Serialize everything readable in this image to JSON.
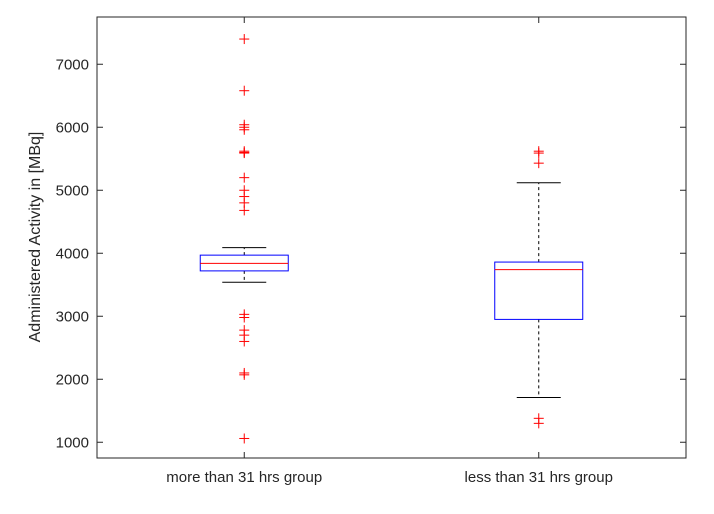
{
  "chart_data": {
    "type": "box",
    "title": "",
    "xlabel": "",
    "ylabel": "Administered Activity in [MBq]",
    "ylim": [
      750,
      7750
    ],
    "yticks": [
      1000,
      2000,
      3000,
      4000,
      5000,
      6000,
      7000
    ],
    "grid": false,
    "categories": [
      "more than 31 hrs group",
      "less than 31 hrs group"
    ],
    "boxes": [
      {
        "category": "more than 31 hrs group",
        "whisker_low": 3540,
        "q1": 3720,
        "median": 3840,
        "q3": 3970,
        "whisker_high": 4090,
        "outliers": [
          7400,
          6580,
          6040,
          6000,
          5960,
          5620,
          5600,
          5590,
          5200,
          5000,
          4900,
          4800,
          4680,
          3030,
          2980,
          2780,
          2700,
          2600,
          2100,
          2070,
          1060
        ]
      },
      {
        "category": "less than 31 hrs group",
        "whisker_low": 1710,
        "q1": 2950,
        "median": 3740,
        "q3": 3860,
        "whisker_high": 5120,
        "outliers": [
          5620,
          5590,
          5430,
          1380,
          1300
        ]
      }
    ],
    "colors": {
      "box": "#0000ff",
      "median": "#ff0000",
      "whisker": "#000000",
      "outlier": "#ff0000",
      "axis": "#262626"
    }
  }
}
